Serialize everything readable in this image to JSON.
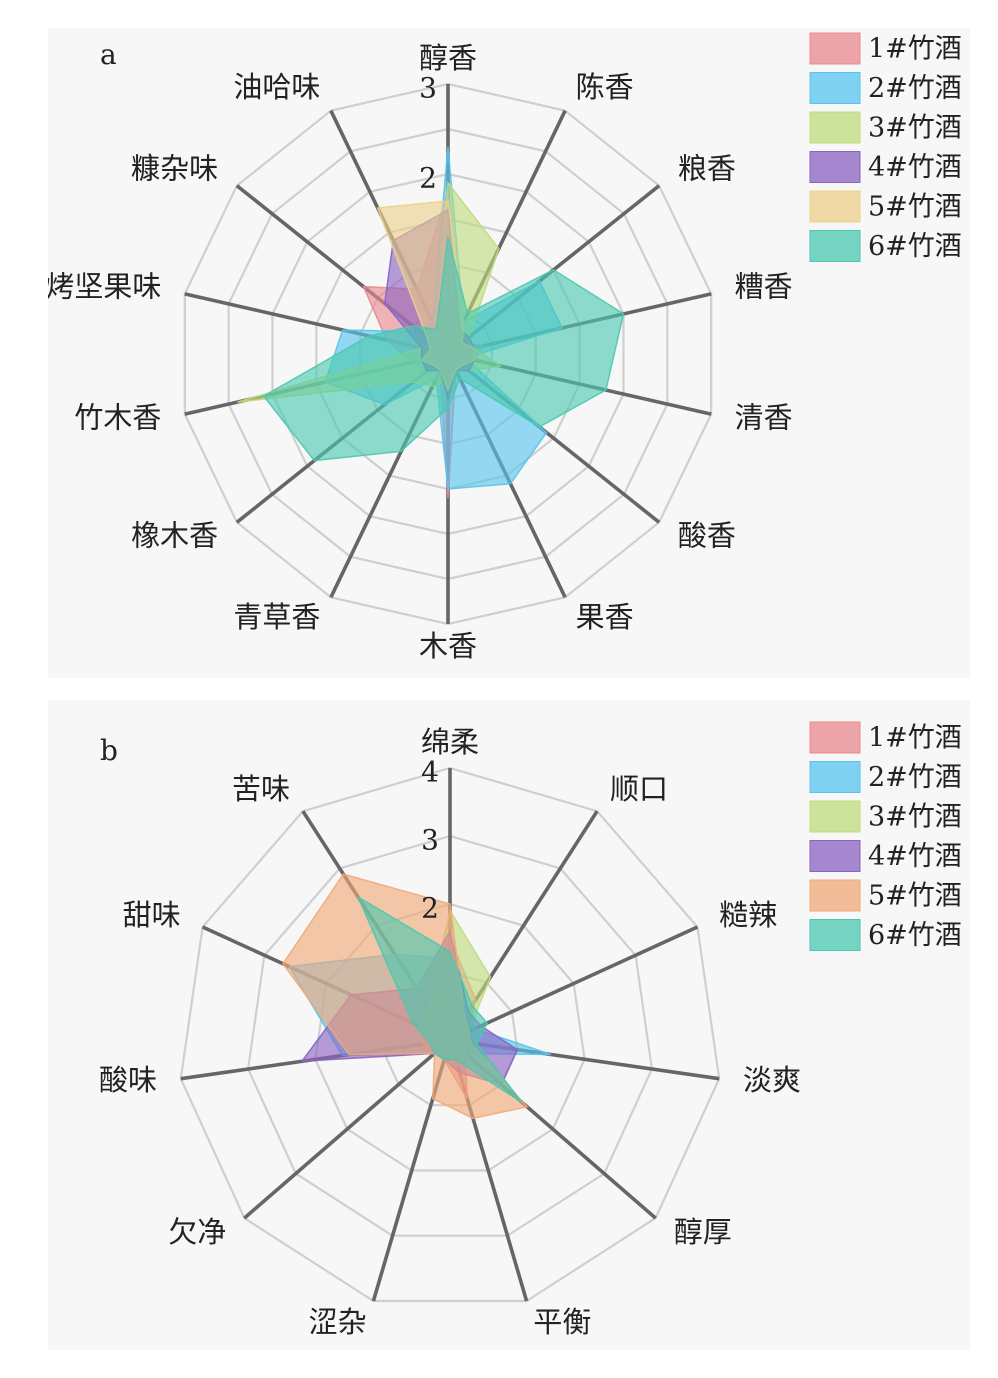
{
  "chart_data": [
    {
      "type": "radar",
      "panel_label": "a",
      "axes": [
        "醇香",
        "陈香",
        "粮香",
        "糟香",
        "清香",
        "酸香",
        "果香",
        "木香",
        "青草香",
        "橡木香",
        "竹木香",
        "烤坚果味",
        "糠杂味",
        "油哈味"
      ],
      "rlim": [
        0,
        3
      ],
      "ticks": [
        {
          "value": 2,
          "label": "2"
        },
        {
          "value": 3,
          "label": "3"
        }
      ],
      "grid_rings": [
        0.5,
        1,
        1.5,
        2,
        2.5,
        3
      ],
      "legend_position": "top-right",
      "series": [
        {
          "name": "1#竹酒",
          "color": "#e8888f",
          "values": [
            1.8,
            0.3,
            0.2,
            0.4,
            0.3,
            0.3,
            0.2,
            1.6,
            0.2,
            0.3,
            0.4,
            0.7,
            1.2,
            0.8
          ]
        },
        {
          "name": "2#竹酒",
          "color": "#55c4ee",
          "values": [
            2.3,
            0.4,
            1.3,
            1.3,
            0.2,
            1.4,
            1.6,
            1.5,
            0.3,
            0.9,
            1.4,
            1.2,
            0.4,
            0.4
          ]
        },
        {
          "name": "3#竹酒",
          "color": "#bedc7c",
          "values": [
            1.9,
            1.3,
            0.3,
            0.3,
            0.6,
            0.3,
            0.2,
            0.3,
            0.4,
            0.5,
            2.4,
            0.3,
            0.2,
            0.3
          ]
        },
        {
          "name": "4#竹酒",
          "color": "#8a62c2",
          "values": [
            1.6,
            0.3,
            0.3,
            0.3,
            0.3,
            0.3,
            0.2,
            0.5,
            0.2,
            0.3,
            0.3,
            0.3,
            0.9,
            1.4
          ]
        },
        {
          "name": "5#竹酒",
          "color": "#ecd08a",
          "values": [
            1.7,
            0.4,
            0.2,
            0.3,
            0.3,
            0.2,
            0.2,
            0.4,
            0.2,
            0.2,
            0.3,
            0.2,
            0.3,
            1.8
          ]
        },
        {
          "name": "6#竹酒",
          "color": "#4ac8b0",
          "values": [
            1.3,
            0.5,
            1.5,
            2.0,
            1.8,
            1.3,
            0.3,
            0.6,
            1.2,
            1.9,
            2.1,
            0.9,
            0.5,
            0.3
          ]
        }
      ]
    },
    {
      "type": "radar",
      "panel_label": "b",
      "axes": [
        "绵柔",
        "顺口",
        "糙辣",
        "淡爽",
        "醇厚",
        "平衡",
        "涩杂",
        "欠净",
        "酸味",
        "甜味",
        "苦味"
      ],
      "rlim": [
        0,
        4
      ],
      "ticks": [
        {
          "value": 2,
          "label": "2"
        },
        {
          "value": 3,
          "label": "3"
        },
        {
          "value": 4,
          "label": "4"
        }
      ],
      "grid_rings": [
        1,
        2,
        3,
        4
      ],
      "legend_position": "top-right",
      "series": [
        {
          "name": "1#竹酒",
          "color": "#e8888f",
          "values": [
            1.5,
            0.7,
            0.3,
            0.3,
            0.3,
            0.9,
            0.3,
            0.3,
            0.4,
            0.5,
            0.8
          ]
        },
        {
          "name": "2#竹酒",
          "color": "#55c4ee",
          "values": [
            1.2,
            0.5,
            0.4,
            1.5,
            0.3,
            0.3,
            0.3,
            0.3,
            1.6,
            2.6,
            1.5
          ]
        },
        {
          "name": "3#竹酒",
          "color": "#bedc7c",
          "values": [
            1.9,
            1.1,
            0.3,
            0.4,
            0.3,
            0.4,
            0.3,
            0.3,
            0.4,
            0.5,
            0.6
          ]
        },
        {
          "name": "4#竹酒",
          "color": "#8a62c2",
          "values": [
            1.6,
            0.5,
            0.5,
            1.0,
            1.0,
            0.5,
            0.3,
            0.3,
            2.2,
            1.6,
            0.9
          ]
        },
        {
          "name": "5#竹酒",
          "color": "#f2a878",
          "values": [
            2.0,
            0.4,
            0.3,
            0.3,
            1.5,
            1.2,
            0.9,
            0.3,
            1.5,
            2.7,
            2.9
          ]
        },
        {
          "name": "6#竹酒",
          "color": "#4ac8b0",
          "values": [
            1.3,
            0.6,
            0.6,
            0.4,
            1.4,
            0.3,
            0.3,
            0.3,
            0.3,
            0.6,
            2.5
          ]
        }
      ]
    }
  ]
}
